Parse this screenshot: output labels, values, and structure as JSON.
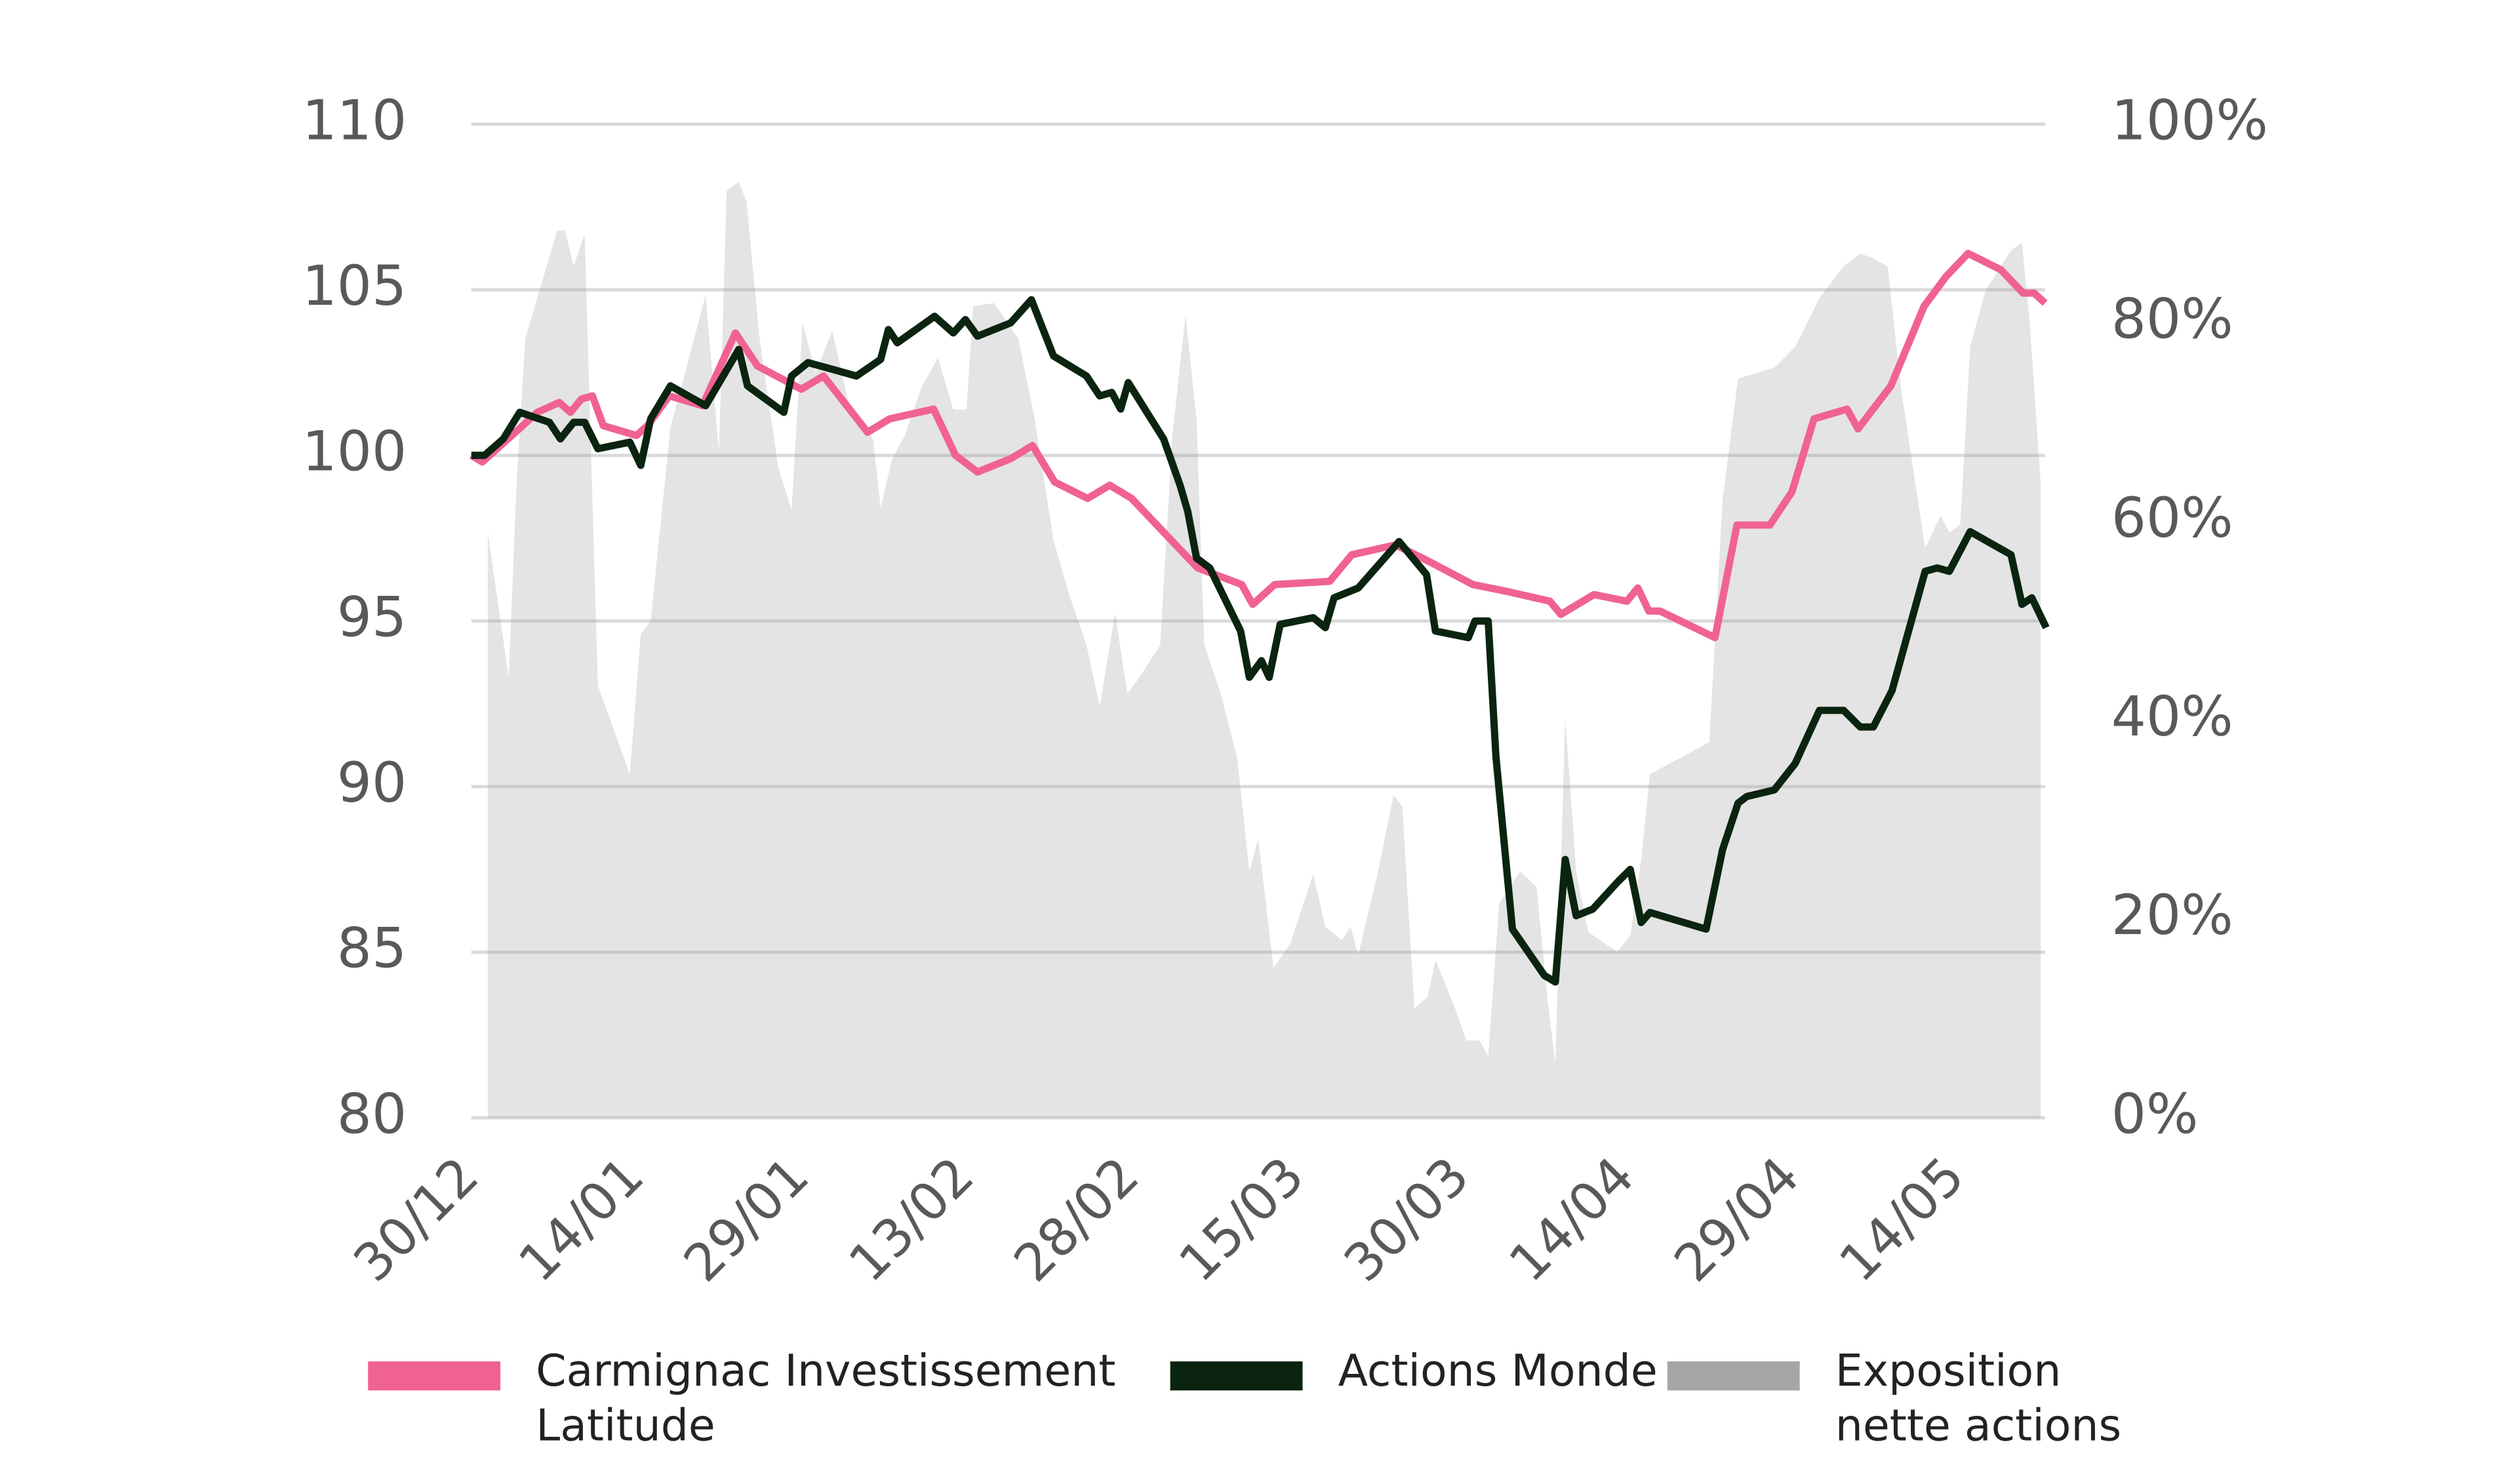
{
  "chart_data": {
    "type": "line",
    "xlim": [
      0,
      143
    ],
    "xticks": [
      {
        "value": 0,
        "label": "30/12"
      },
      {
        "value": 15,
        "label": "14/01"
      },
      {
        "value": 30,
        "label": "29/01"
      },
      {
        "value": 45,
        "label": "13/02"
      },
      {
        "value": 60,
        "label": "28/02"
      },
      {
        "value": 75,
        "label": "15/03"
      },
      {
        "value": 90,
        "label": "30/03"
      },
      {
        "value": 105,
        "label": "14/04"
      },
      {
        "value": 120,
        "label": "29/04"
      },
      {
        "value": 135,
        "label": "14/05"
      }
    ],
    "ylim": [
      80,
      110
    ],
    "yticks": [
      80,
      85,
      90,
      95,
      100,
      105,
      110
    ],
    "y2lim": [
      0,
      100
    ],
    "y2ticks": [
      {
        "value": 0,
        "label": "0%"
      },
      {
        "value": 20,
        "label": "20%"
      },
      {
        "value": 40,
        "label": "40%"
      },
      {
        "value": 60,
        "label": "60%"
      },
      {
        "value": 80,
        "label": "80%"
      },
      {
        "value": 100,
        "label": "100%"
      }
    ],
    "grid": true,
    "series": [
      {
        "name": "Exposition nette actions",
        "color": "#a6a6a6",
        "axis": "y2",
        "kind": "area",
        "x": [
          1.5,
          3.4,
          4.1,
          4.9,
          7.8,
          8.5,
          9.3,
          10.3,
          11.5,
          14.4,
          15.4,
          16.3,
          18.1,
          21.3,
          22.5,
          23.2,
          24.3,
          25,
          26.2,
          27.9,
          29.1,
          30.1,
          31.3,
          32.8,
          34.3,
          36.5,
          37.2,
          38.2,
          39.4,
          40.9,
          42.4,
          43.8,
          45,
          45.6,
          47.5,
          49.7,
          51.2,
          52.9,
          54.4,
          55.9,
          57.1,
          58.5,
          59.6,
          60.7,
          62.6,
          63.7,
          64.9,
          65.9,
          66.6,
          68.1,
          69.6,
          70.7,
          71.5,
          72.9,
          74.4,
          76.5,
          77.6,
          79.1,
          79.9,
          80.6,
          82.4,
          83.8,
          84.6,
          85.7,
          86.9,
          87.6,
          89.4,
          90.4,
          91.6,
          92.4,
          93.4,
          95.3,
          96.8,
          97.8,
          98.5,
          99.4,
          100.4,
          101.5,
          104.1,
          105.3,
          106.3,
          107.1,
          112.5,
          113.7,
          115.1,
          118.4,
          120.3,
          122.5,
          124.7,
          126.2,
          127.4,
          128.7,
          129.9,
          132.1,
          133.5,
          134.3,
          135.3,
          136.2,
          137.6,
          139.9,
          140.9,
          141.6,
          142.6
        ],
        "values": [
          58.9,
          44.3,
          63.8,
          78.4,
          89.3,
          89.3,
          85.7,
          89,
          43.5,
          34.6,
          48.7,
          50,
          69.5,
          82.8,
          67,
          93.3,
          94.2,
          92.2,
          78.4,
          65.4,
          61.2,
          80,
          75,
          79.2,
          71.9,
          68.3,
          61.4,
          66.2,
          68.7,
          73.5,
          76.5,
          71.3,
          71.3,
          81.7,
          82,
          78.4,
          70.3,
          58.1,
          52.4,
          47.6,
          41.4,
          50.8,
          42.7,
          44.3,
          47.6,
          68.7,
          80.8,
          70.3,
          47.6,
          42.7,
          36.2,
          24.8,
          28.1,
          15.1,
          17.5,
          24.5,
          19.2,
          17.9,
          19.2,
          16.4,
          24.8,
          32.5,
          31.3,
          11,
          12.2,
          15.9,
          11,
          7.8,
          7.8,
          6.2,
          21.6,
          24.8,
          23.2,
          11.9,
          5.4,
          40.3,
          24.8,
          18.7,
          16.7,
          18.3,
          26,
          34.6,
          37.8,
          62.2,
          74.4,
          75.5,
          77.6,
          82.5,
          85.7,
          87,
          86.5,
          85.7,
          73.5,
          57.3,
          60.6,
          58.9,
          59.7,
          77.6,
          83.3,
          87.3,
          88.1,
          80,
          63.8
        ]
      },
      {
        "name": "Carmignac Investissement Latitude",
        "color": "#f06292",
        "x": [
          0,
          1,
          4,
          6,
          8,
          9,
          10,
          11,
          12,
          15,
          16,
          18,
          21,
          24,
          26,
          30,
          32,
          36,
          38,
          42,
          44,
          46,
          49,
          51,
          53,
          56,
          58,
          60,
          62,
          64,
          66,
          70,
          71,
          73,
          78,
          80,
          84,
          87,
          91,
          94,
          98,
          99,
          102,
          105,
          106,
          107,
          108,
          113,
          115,
          118,
          120,
          122,
          125,
          126,
          129,
          132,
          134,
          136,
          139,
          141,
          142,
          143
        ],
        "values": [
          100,
          99.8,
          100.7,
          101.3,
          101.6,
          101.3,
          101.7,
          101.8,
          100.9,
          100.6,
          100.9,
          101.8,
          101.5,
          103.7,
          102.7,
          102,
          102.4,
          100.7,
          101.1,
          101.4,
          100,
          99.5,
          99.9,
          100.3,
          99.2,
          98.7,
          99.1,
          98.7,
          98,
          97.3,
          96.6,
          96.1,
          95.5,
          96.1,
          96.2,
          97,
          97.3,
          96.8,
          96.1,
          95.9,
          95.6,
          95.2,
          95.8,
          95.6,
          96,
          95.3,
          95.3,
          94.5,
          97.9,
          97.9,
          98.9,
          101.1,
          101.4,
          100.8,
          102.1,
          104.5,
          105.4,
          106.1,
          105.6,
          104.9,
          104.9,
          104.6
        ]
      },
      {
        "name": "Actions Monde",
        "color": "#0a2410",
        "x": [
          0,
          1.2,
          2.9,
          4.4,
          7.1,
          8.1,
          9.3,
          10.3,
          11.5,
          14.4,
          15.4,
          16.3,
          18.1,
          21.3,
          24.3,
          25.1,
          28.4,
          29.1,
          30.6,
          35,
          37.2,
          37.9,
          38.7,
          42.1,
          43.8,
          44.9,
          46,
          49,
          50.9,
          52.9,
          55.9,
          57.1,
          58.2,
          59,
          59.7,
          62.9,
          64.4,
          65.1,
          65.9,
          67.1,
          69.9,
          70.7,
          71.8,
          72.5,
          73.5,
          76.5,
          77.6,
          78.4,
          80.6,
          84.3,
          86.8,
          87.6,
          90.6,
          91.2,
          92.4,
          93.1,
          94.6,
          97.5,
          98.5,
          99.4,
          100.4,
          101.9,
          104.1,
          105.3,
          106.3,
          107.1,
          112.2,
          113.7,
          115.1,
          115.9,
          118.4,
          120.3,
          122.5,
          124.7,
          126.2,
          127.4,
          129.1,
          132.1,
          133.2,
          134.3,
          136.2,
          139.9,
          140.9,
          141.8,
          143.1
        ],
        "values": [
          100,
          100,
          100.5,
          101.3,
          101,
          100.5,
          101,
          101,
          100.2,
          100.4,
          99.7,
          101.1,
          102.1,
          101.5,
          103.2,
          102.1,
          101.3,
          102.4,
          102.8,
          102.4,
          102.9,
          103.8,
          103.4,
          104.2,
          103.7,
          104.1,
          103.6,
          104,
          104.7,
          103,
          102.4,
          101.8,
          101.9,
          101.4,
          102.2,
          100.5,
          99.1,
          98.3,
          96.9,
          96.6,
          94.7,
          93.3,
          93.8,
          93.3,
          94.9,
          95.1,
          94.8,
          95.7,
          96,
          97.4,
          96.4,
          94.7,
          94.5,
          95,
          95,
          90.9,
          85.7,
          84.3,
          84.1,
          87.8,
          86.1,
          86.3,
          87.1,
          87.5,
          85.9,
          86.2,
          85.7,
          88.1,
          89.5,
          89.7,
          89.9,
          90.7,
          92.3,
          92.3,
          91.8,
          91.8,
          92.9,
          96.5,
          96.6,
          96.5,
          97.7,
          97,
          95.5,
          95.7,
          94.8
        ]
      }
    ]
  }
}
